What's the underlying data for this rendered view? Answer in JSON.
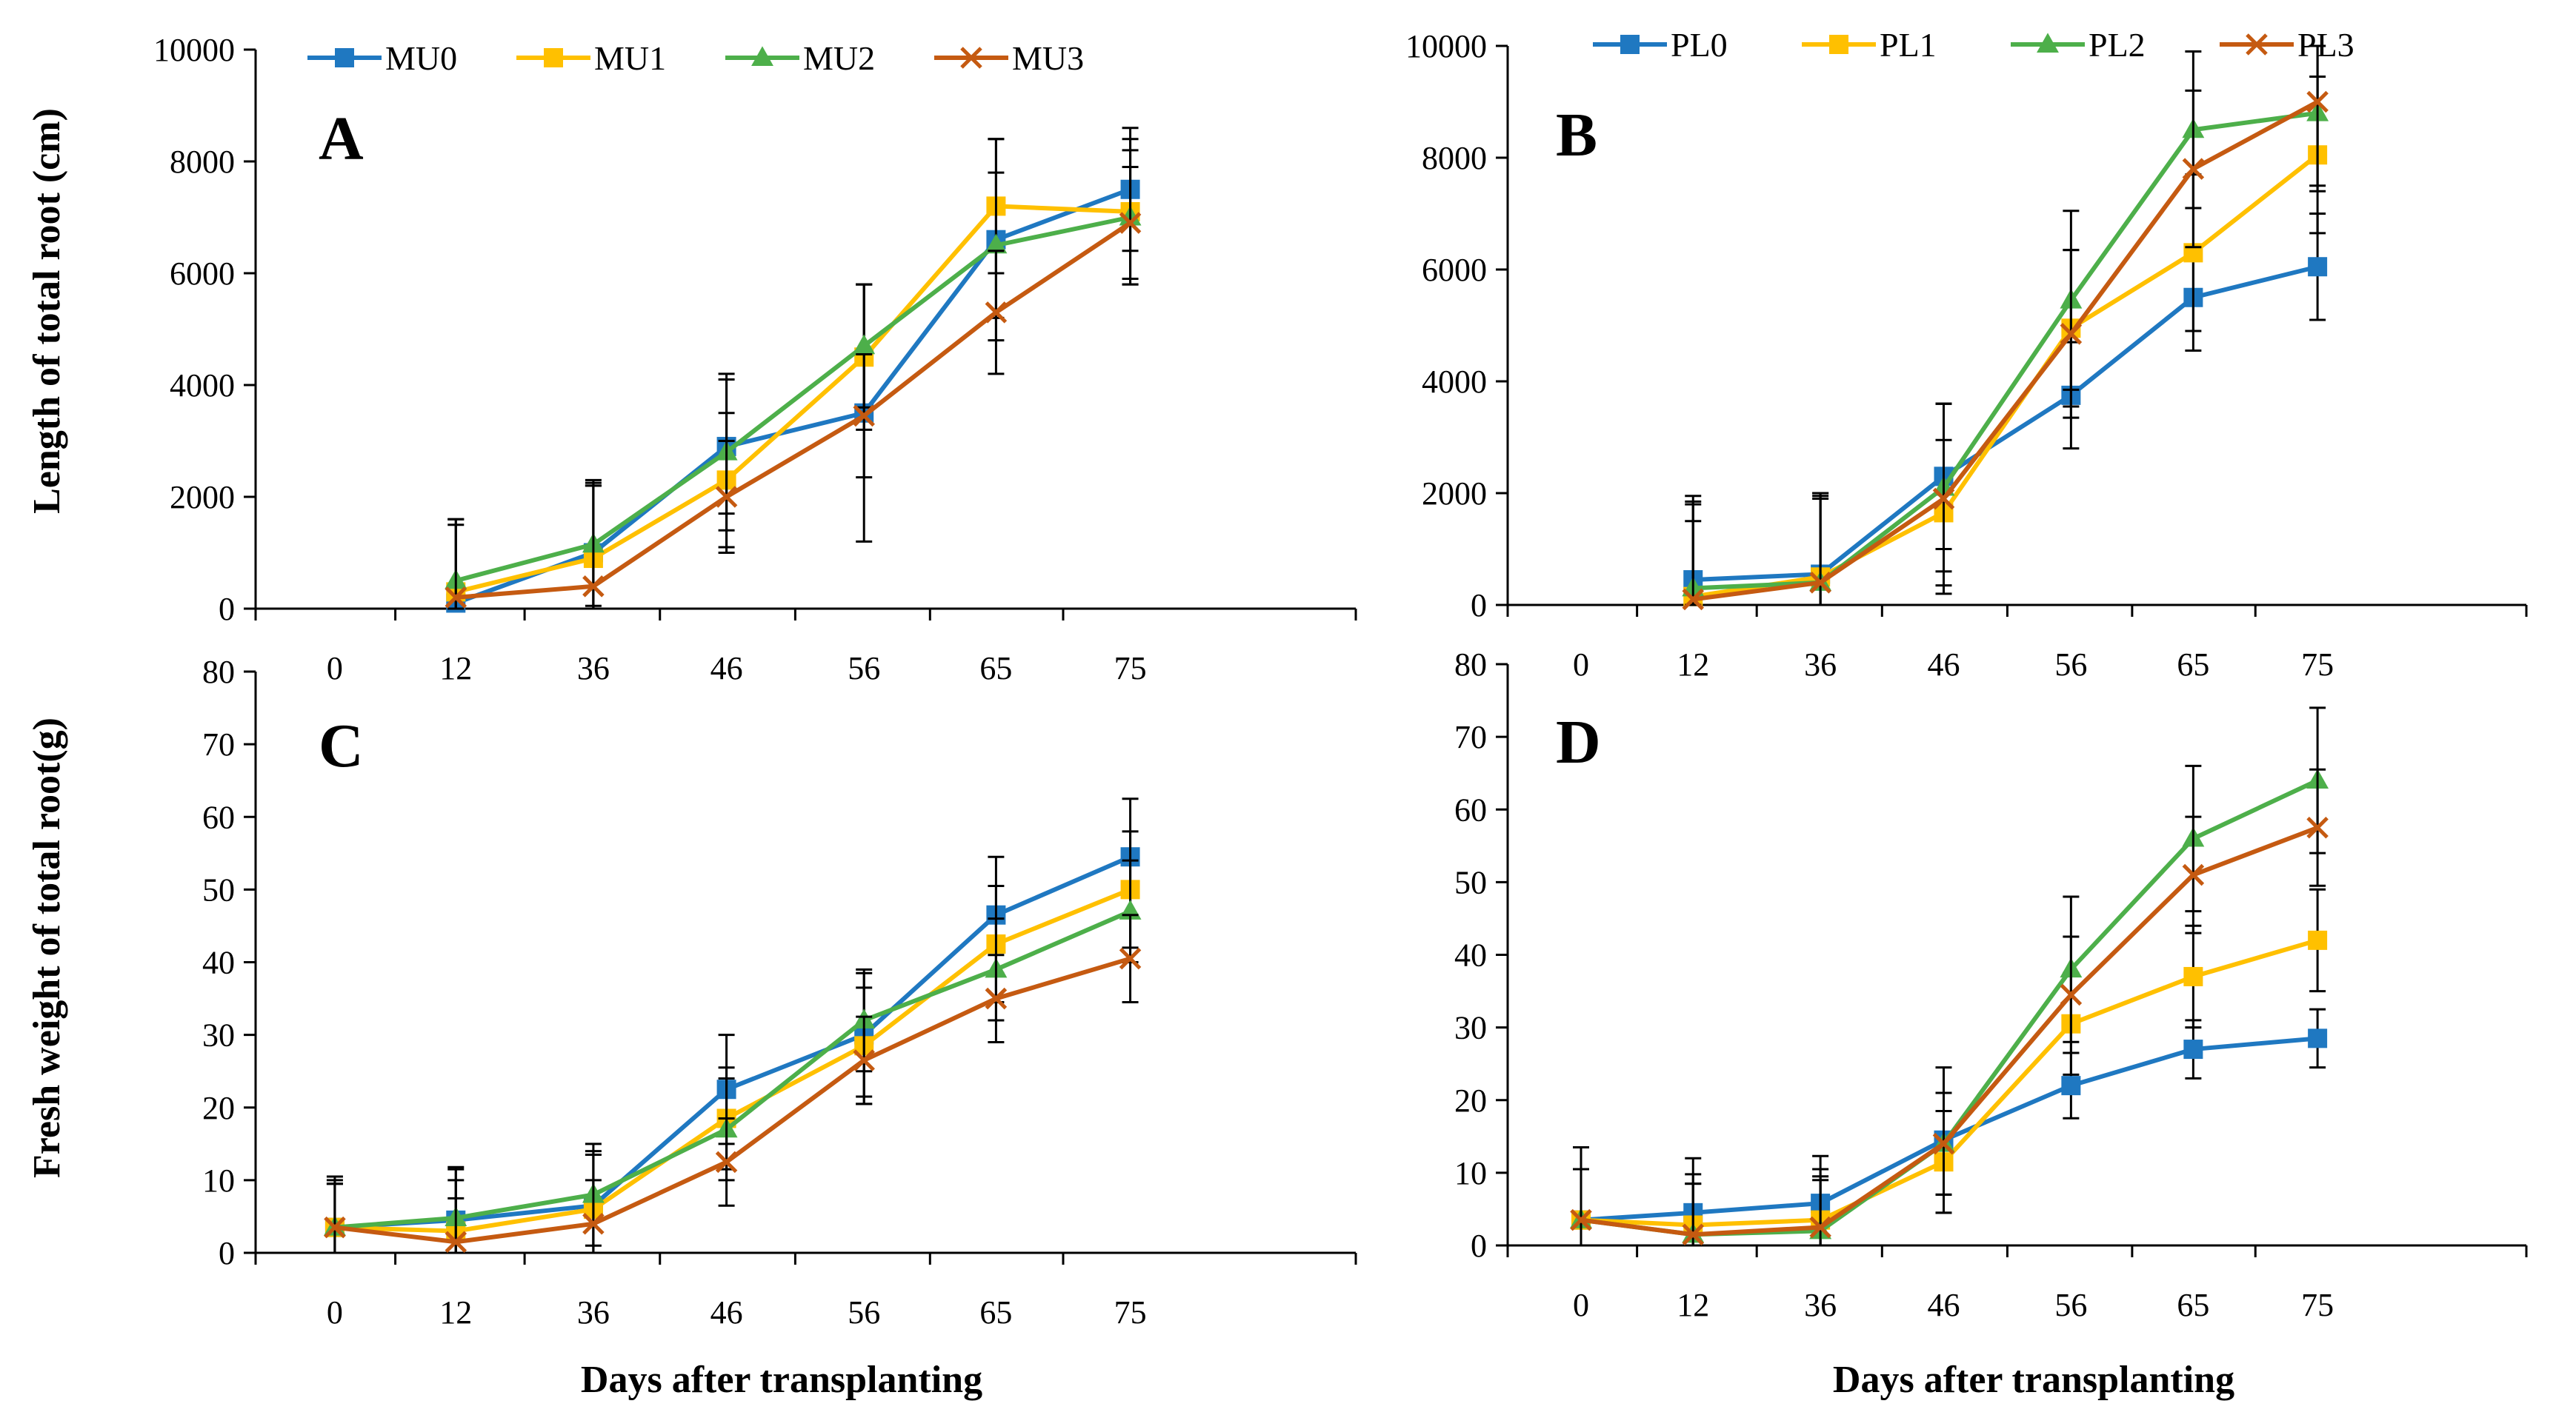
{
  "colors": {
    "S0": "#1f78c1",
    "S1": "#ffc000",
    "S2": "#4daf4a",
    "S3": "#c55a11",
    "axis": "#000000"
  },
  "chart_data": [
    {
      "panel": "A",
      "type": "line",
      "categories": [
        "0",
        "12",
        "36",
        "46",
        "56",
        "65",
        "75"
      ],
      "ylim": [
        0,
        10000
      ],
      "yticks": [
        0,
        2000,
        4000,
        6000,
        8000,
        10000
      ],
      "ylabel": "Length of total root (cm)",
      "xlabel": "",
      "legend_position": "top",
      "series": [
        {
          "name": "MU0",
          "marker": "square",
          "color": "S0",
          "values": [
            null,
            100,
            1000,
            2900,
            3500,
            6600,
            7500
          ],
          "errors": [
            null,
            300,
            1200,
            1200,
            2300,
            1800,
            1100
          ]
        },
        {
          "name": "MU1",
          "marker": "square",
          "color": "S1",
          "values": [
            null,
            300,
            900,
            2300,
            4500,
            7200,
            7100
          ],
          "errors": [
            null,
            1200,
            1300,
            1200,
            1300,
            1200,
            1300
          ]
        },
        {
          "name": "MU2",
          "marker": "triangle",
          "color": "S2",
          "values": [
            null,
            500,
            1150,
            2800,
            4700,
            6500,
            7000
          ],
          "errors": [
            null,
            1100,
            1100,
            1400,
            1100,
            1300,
            1200
          ]
        },
        {
          "name": "MU3",
          "marker": "x",
          "color": "S3",
          "values": [
            null,
            200,
            400,
            2000,
            3450,
            5300,
            6900
          ],
          "errors": [
            null,
            1400,
            1900,
            1000,
            1100,
            1100,
            1000
          ]
        }
      ]
    },
    {
      "panel": "B",
      "type": "line",
      "categories": [
        "0",
        "12",
        "36",
        "46",
        "56",
        "65",
        "75"
      ],
      "ylim": [
        0,
        10000
      ],
      "yticks": [
        0,
        2000,
        4000,
        6000,
        8000,
        10000
      ],
      "ylabel": "",
      "xlabel": "",
      "legend_position": "top",
      "series": [
        {
          "name": "PL0",
          "marker": "square",
          "color": "S0",
          "values": [
            null,
            450,
            550,
            2300,
            3750,
            5500,
            6050
          ],
          "errors": [
            null,
            1400,
            1400,
            1300,
            950,
            950,
            950
          ]
        },
        {
          "name": "PL1",
          "marker": "square",
          "color": "S1",
          "values": [
            null,
            150,
            500,
            1650,
            4950,
            6300,
            8050
          ],
          "errors": [
            null,
            1800,
            1500,
            1300,
            1400,
            1400,
            1400
          ]
        },
        {
          "name": "PL2",
          "marker": "triangle",
          "color": "S2",
          "values": [
            null,
            300,
            400,
            2100,
            5450,
            8500,
            8800
          ],
          "errors": [
            null,
            1500,
            1500,
            1500,
            1600,
            1400,
            1400
          ]
        },
        {
          "name": "PL3",
          "marker": "x",
          "color": "S3",
          "values": [
            null,
            100,
            400,
            1900,
            4850,
            7800,
            9000
          ],
          "errors": [
            null,
            1400,
            1600,
            1700,
            1500,
            1400,
            1500
          ]
        }
      ]
    },
    {
      "panel": "C",
      "type": "line",
      "categories": [
        "0",
        "12",
        "36",
        "46",
        "56",
        "65",
        "75"
      ],
      "ylim": [
        0,
        80
      ],
      "yticks": [
        0,
        10,
        20,
        30,
        40,
        50,
        60,
        70,
        80
      ],
      "ylabel": "Fresh weight of total root(g)",
      "xlabel": "Days after transplanting",
      "series": [
        {
          "name": "MU0",
          "marker": "square",
          "color": "S0",
          "values": [
            3.5,
            4.5,
            6.5,
            22.5,
            30,
            46.5,
            54.5
          ],
          "errors": [
            7,
            7,
            7.5,
            7.5,
            8.5,
            8,
            8
          ]
        },
        {
          "name": "MU1",
          "marker": "square",
          "color": "S1",
          "values": [
            3.5,
            3,
            6,
            18.5,
            28.5,
            42.5,
            50
          ],
          "errors": [
            6.5,
            7,
            7.5,
            7,
            8,
            8,
            8
          ]
        },
        {
          "name": "MU2",
          "marker": "triangle",
          "color": "S2",
          "values": [
            3.5,
            4.8,
            8,
            17,
            32,
            39,
            47
          ],
          "errors": [
            6,
            7,
            7,
            7,
            7,
            7,
            7
          ]
        },
        {
          "name": "MU3",
          "marker": "x",
          "color": "S3",
          "values": [
            3.5,
            1.5,
            4,
            12.5,
            26.5,
            35,
            40.5
          ],
          "errors": [
            6,
            6,
            6,
            6,
            6,
            6,
            6
          ]
        }
      ]
    },
    {
      "panel": "D",
      "type": "line",
      "categories": [
        "0",
        "12",
        "36",
        "46",
        "56",
        "65",
        "75"
      ],
      "ylim": [
        0,
        80
      ],
      "yticks": [
        0,
        10,
        20,
        30,
        40,
        50,
        60,
        70,
        80
      ],
      "ylabel": "",
      "xlabel": "Days after transplanting",
      "series": [
        {
          "name": "PL0",
          "marker": "square",
          "color": "S0",
          "values": [
            3.5,
            4.5,
            5.8,
            14.5,
            22,
            27,
            28.5
          ],
          "errors": [
            10,
            7.5,
            6.5,
            10,
            4.5,
            4,
            4
          ]
        },
        {
          "name": "PL1",
          "marker": "square",
          "color": "S1",
          "values": [
            3.5,
            2.8,
            3.5,
            11.5,
            30.5,
            37,
            42
          ],
          "errors": [
            7,
            7,
            7,
            7,
            7,
            7,
            7
          ]
        },
        {
          "name": "PL2",
          "marker": "triangle",
          "color": "S2",
          "values": [
            3.5,
            1.5,
            2,
            14,
            38,
            56,
            64
          ],
          "errors": [
            7,
            7,
            7,
            7,
            10,
            10,
            10
          ]
        },
        {
          "name": "PL3",
          "marker": "x",
          "color": "S3",
          "values": [
            3.5,
            1.5,
            2.5,
            14,
            34.5,
            51,
            57.5
          ],
          "errors": [
            7,
            7,
            7,
            7,
            8,
            8,
            8
          ]
        }
      ]
    }
  ]
}
